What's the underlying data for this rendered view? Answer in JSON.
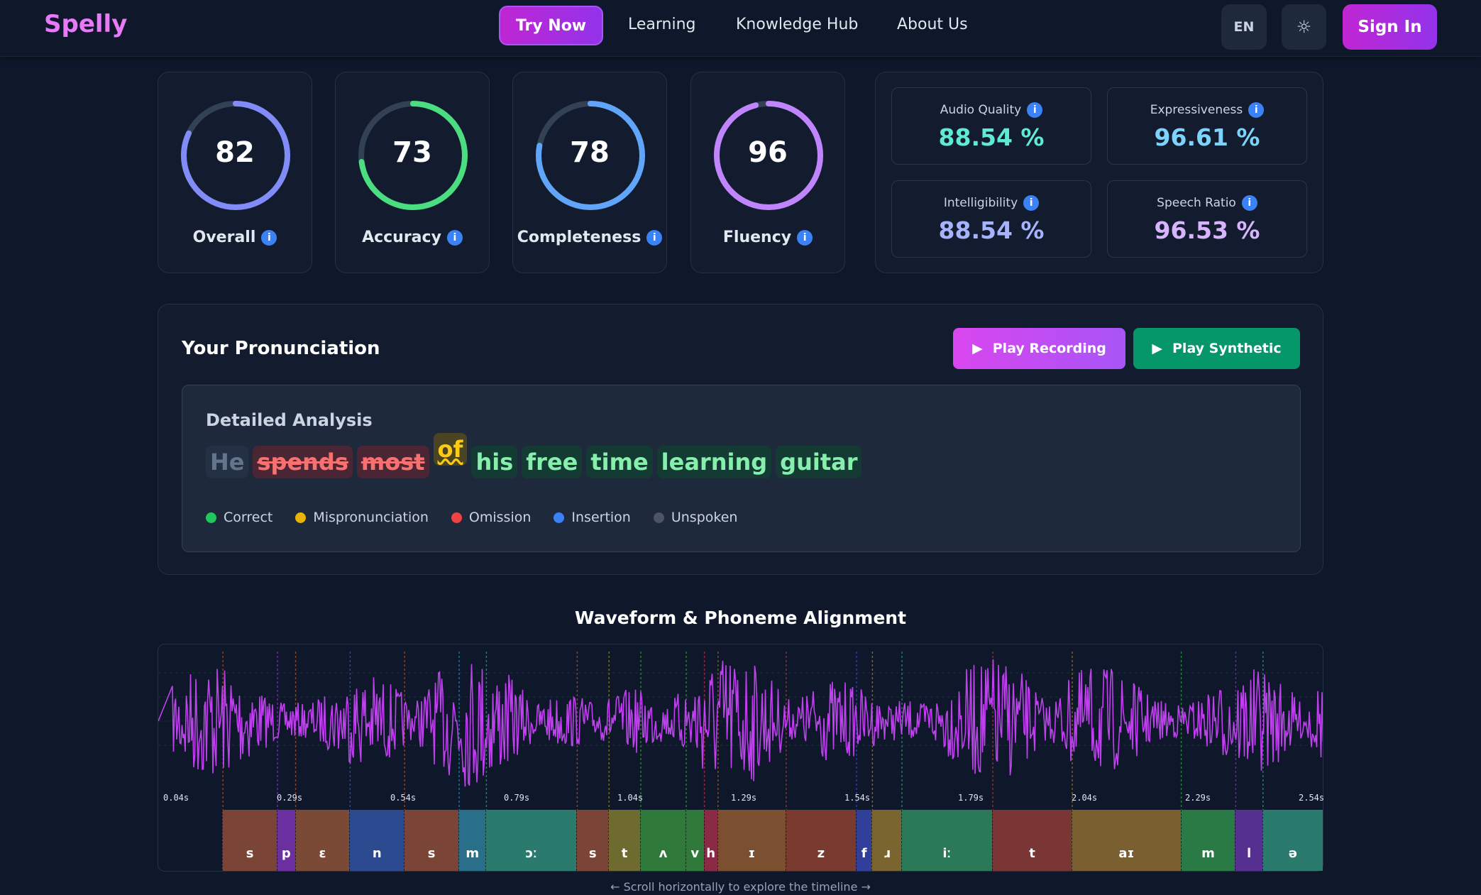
{
  "header": {
    "logo": "Spelly",
    "nav": [
      "Try Now",
      "Learning",
      "Knowledge Hub",
      "About Us"
    ],
    "lang": "EN",
    "theme_icon": "sun-icon",
    "sign_in": "Sign In"
  },
  "scores": [
    {
      "label": "Overall",
      "value": 82,
      "color": "#818cf8"
    },
    {
      "label": "Accuracy",
      "value": 73,
      "color": "#4ade80"
    },
    {
      "label": "Completeness",
      "value": 78,
      "color": "#60a5fa"
    },
    {
      "label": "Fluency",
      "value": 96,
      "color": "#c084fc"
    }
  ],
  "metrics": [
    {
      "label": "Audio Quality",
      "value": "88.54 %",
      "color": "#5eead4"
    },
    {
      "label": "Expressiveness",
      "value": "96.61 %",
      "color": "#7dd3fc"
    },
    {
      "label": "Intelligibility",
      "value": "88.54 %",
      "color": "#a5b4fc"
    },
    {
      "label": "Speech Ratio",
      "value": "96.53 %",
      "color": "#d8b4fe"
    }
  ],
  "pronunciation": {
    "title": "Your Pronunciation",
    "play_recording": "Play Recording",
    "play_synthetic": "Play Synthetic",
    "analysis_title": "Detailed Analysis",
    "words": [
      {
        "text": "He",
        "status": "unspoken"
      },
      {
        "text": "spends",
        "status": "omission"
      },
      {
        "text": "most",
        "status": "omission"
      },
      {
        "text": "of",
        "status": "mispronunciation"
      },
      {
        "text": "his",
        "status": "correct"
      },
      {
        "text": "free",
        "status": "correct"
      },
      {
        "text": "time",
        "status": "correct"
      },
      {
        "text": "learning",
        "status": "correct"
      },
      {
        "text": "guitar",
        "status": "correct"
      }
    ],
    "legend": [
      {
        "label": "Correct",
        "color": "#22c55e"
      },
      {
        "label": "Mispronunciation",
        "color": "#eab308"
      },
      {
        "label": "Omission",
        "color": "#ef4444"
      },
      {
        "label": "Insertion",
        "color": "#3b82f6"
      },
      {
        "label": "Unspoken",
        "color": "#4b5563"
      }
    ]
  },
  "waveform": {
    "title": "Waveform & Phoneme Alignment",
    "ticks": [
      "0.04s",
      "0.29s",
      "0.54s",
      "0.79s",
      "1.04s",
      "1.29s",
      "1.54s",
      "1.79s",
      "2.04s",
      "2.29s",
      "2.54s"
    ],
    "phonemes": [
      {
        "p": "s",
        "start": 0.17,
        "end": 0.29,
        "color": "#7a4436"
      },
      {
        "p": "p",
        "start": 0.29,
        "end": 0.33,
        "color": "#6b2fa0"
      },
      {
        "p": "ɛ",
        "start": 0.33,
        "end": 0.45,
        "color": "#7a4a36"
      },
      {
        "p": "n",
        "start": 0.45,
        "end": 0.57,
        "color": "#2b4a8f"
      },
      {
        "p": "s",
        "start": 0.57,
        "end": 0.69,
        "color": "#7a4436"
      },
      {
        "p": "m",
        "start": 0.69,
        "end": 0.75,
        "color": "#2a6f8a"
      },
      {
        "p": "ɔː",
        "start": 0.75,
        "end": 0.95,
        "color": "#2a7a6e"
      },
      {
        "p": "s",
        "start": 0.95,
        "end": 1.02,
        "color": "#7a4436"
      },
      {
        "p": "t",
        "start": 1.02,
        "end": 1.09,
        "color": "#6e6a30"
      },
      {
        "p": "ʌ",
        "start": 1.09,
        "end": 1.19,
        "color": "#2f7a3a"
      },
      {
        "p": "v",
        "start": 1.19,
        "end": 1.23,
        "color": "#2f7a3a"
      },
      {
        "p": "h",
        "start": 1.23,
        "end": 1.26,
        "color": "#8a2a45"
      },
      {
        "p": "ɪ",
        "start": 1.26,
        "end": 1.41,
        "color": "#7a5030"
      },
      {
        "p": "z",
        "start": 1.41,
        "end": 1.565,
        "color": "#7a3a30"
      },
      {
        "p": "f",
        "start": 1.565,
        "end": 1.6,
        "color": "#2f3f9a"
      },
      {
        "p": "ɹ",
        "start": 1.6,
        "end": 1.665,
        "color": "#7a6530"
      },
      {
        "p": "iː",
        "start": 1.665,
        "end": 1.865,
        "color": "#2a7a5a"
      },
      {
        "p": "t",
        "start": 1.865,
        "end": 2.04,
        "color": "#7a3535"
      },
      {
        "p": "aɪ",
        "start": 2.04,
        "end": 2.28,
        "color": "#7a6030"
      },
      {
        "p": "m",
        "start": 2.28,
        "end": 2.4,
        "color": "#2a7a45"
      },
      {
        "p": "l",
        "start": 2.4,
        "end": 2.46,
        "color": "#553090"
      },
      {
        "p": "ə",
        "start": 2.46,
        "end": 2.59,
        "color": "#2a7a6e"
      }
    ],
    "wave_color": "#c040f0",
    "hint": "← Scroll horizontally to explore the timeline →"
  }
}
